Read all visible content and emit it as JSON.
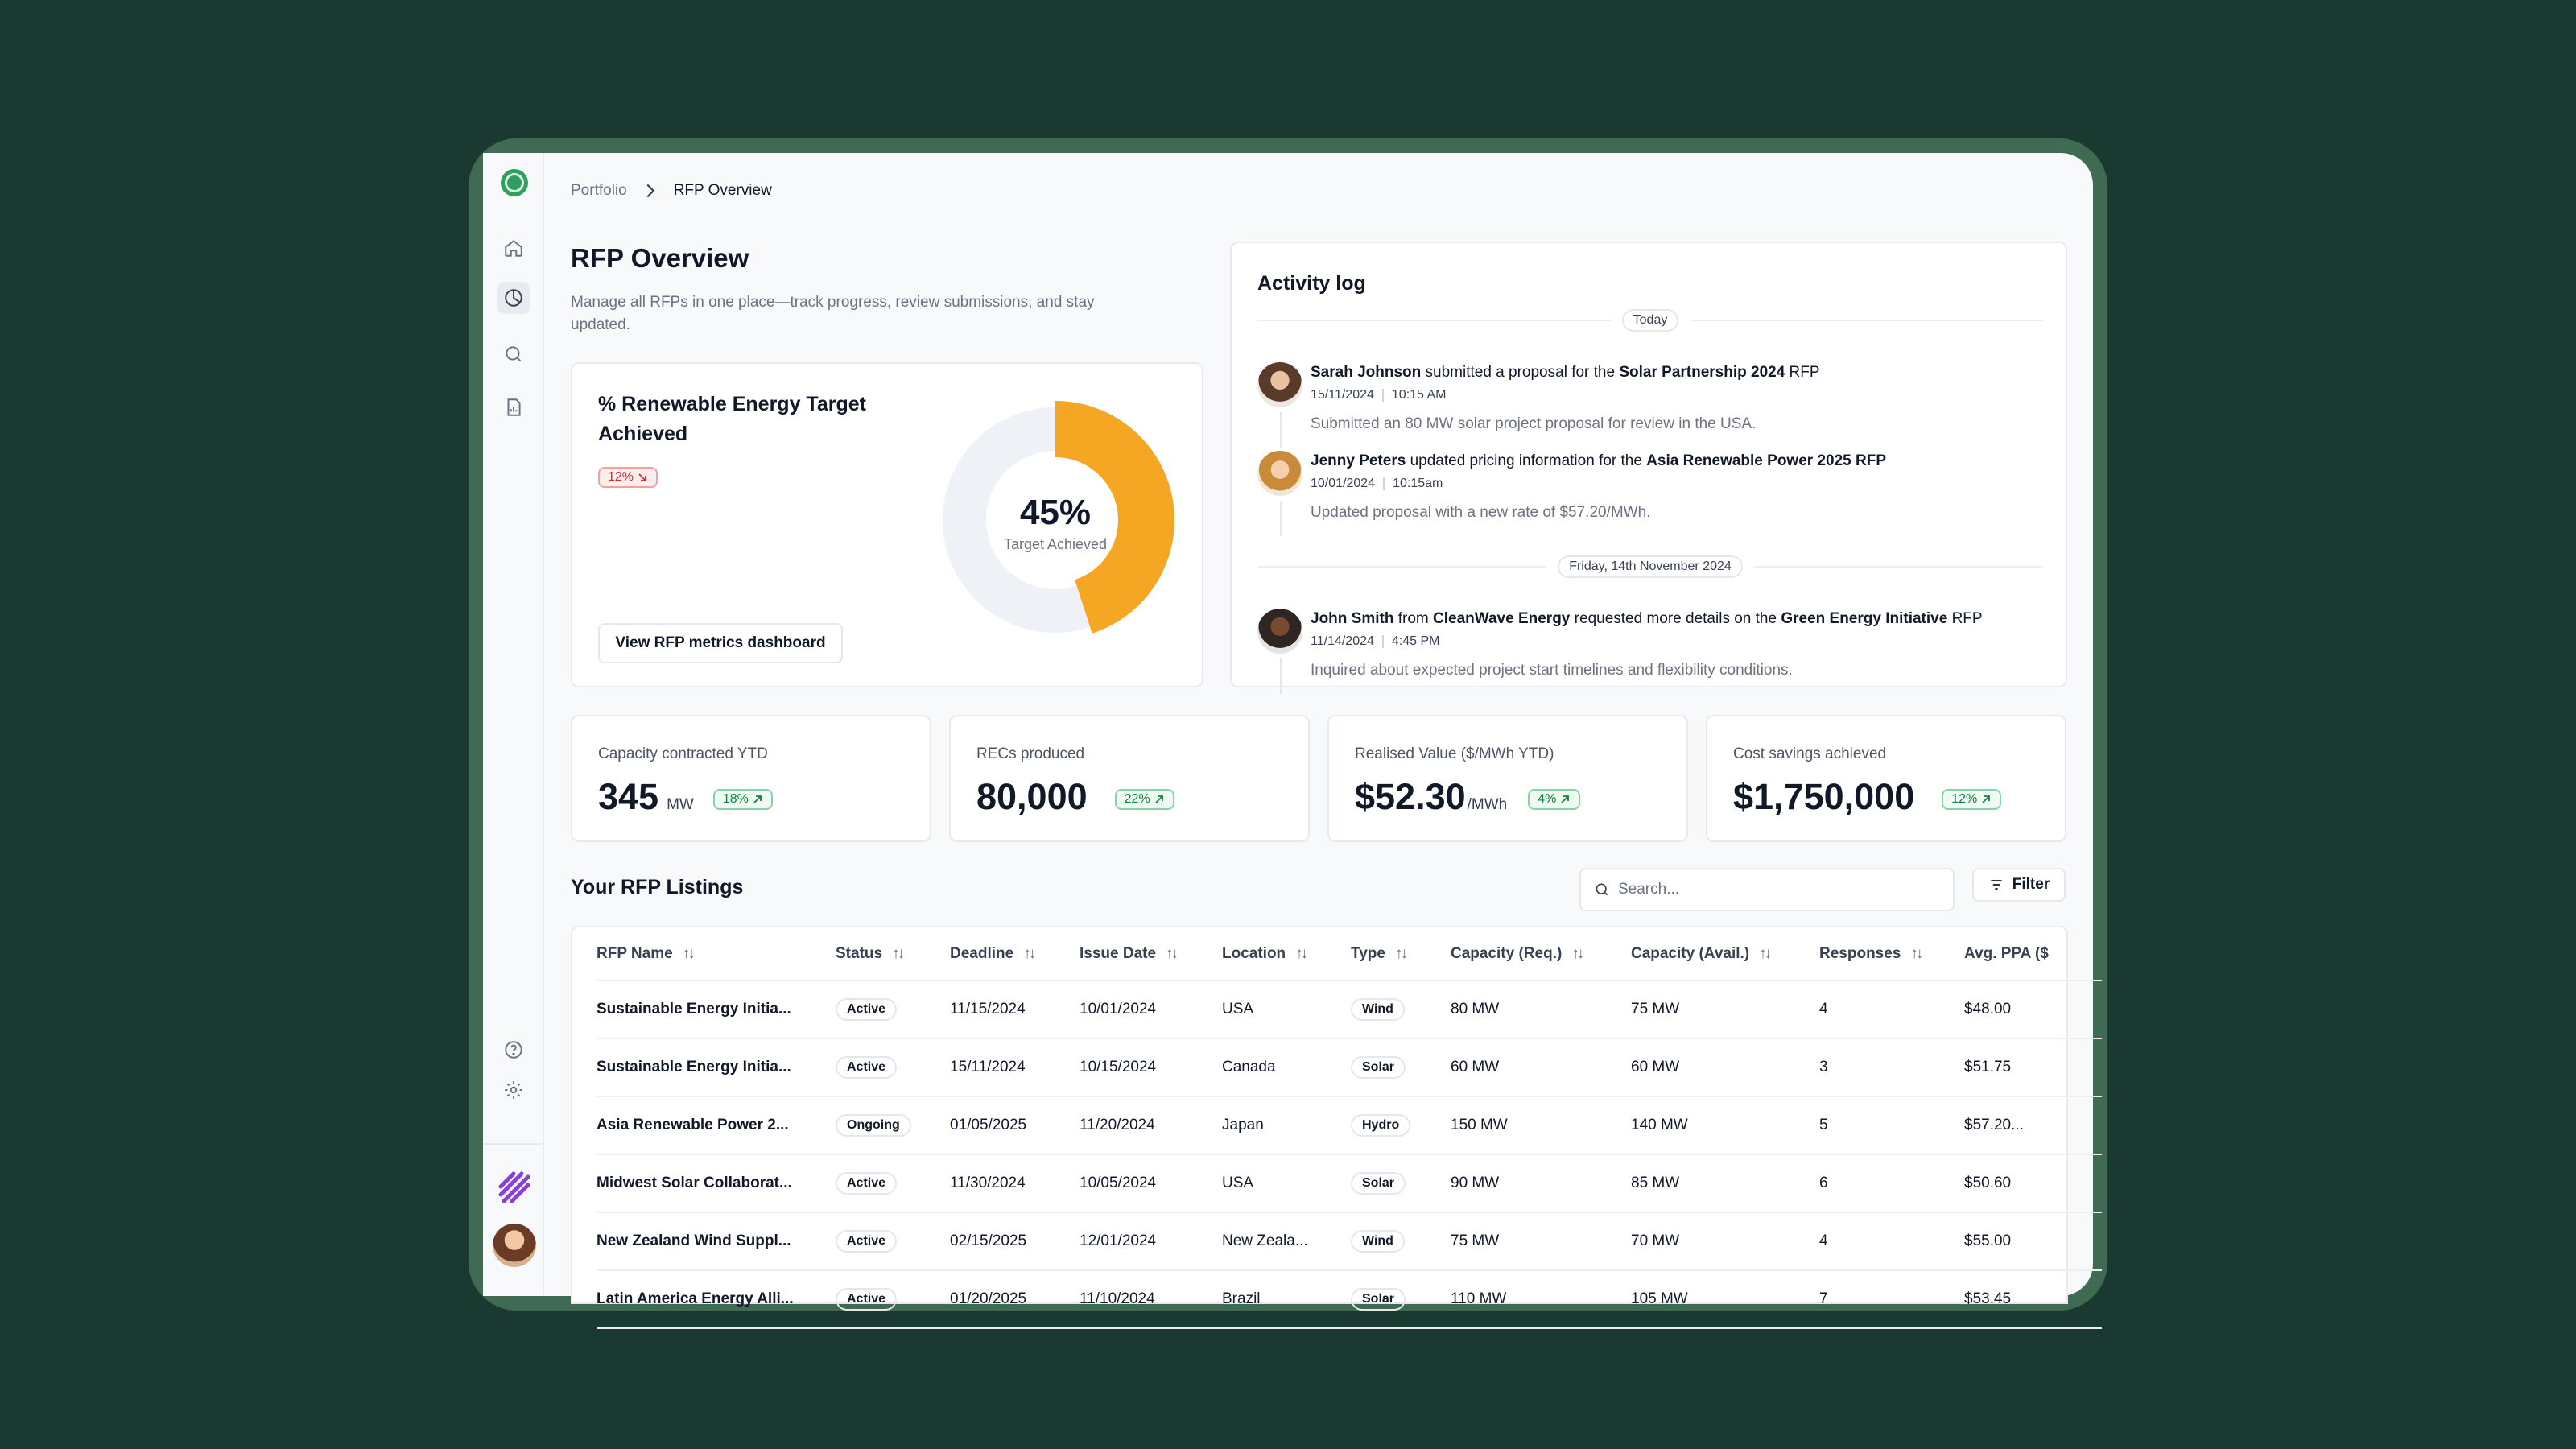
{
  "breadcrumb": {
    "parent": "Portfolio",
    "current": "RFP Overview"
  },
  "page": {
    "title": "RFP Overview",
    "subtitle": "Manage all RFPs in one place—track progress, review submissions, and stay updated."
  },
  "target_card": {
    "title": "% Renewable Energy Target Achieved",
    "change": "12%",
    "percent_label": "45%",
    "percent_value": 45,
    "caption": "Target Achieved",
    "button": "View RFP metrics dashboard",
    "colors": {
      "progress": "#f5a623",
      "track": "#eef1f5"
    }
  },
  "activity": {
    "title": "Activity log",
    "groups": [
      {
        "label": "Today",
        "items": [
          {
            "actor": "Sarah Johnson",
            "mid1": " submitted a proposal for the ",
            "org": "",
            "mid2": "",
            "target": "Solar Partnership 2024",
            "tail": " RFP",
            "date": "15/11/2024",
            "time": "10:15 AM",
            "desc": "Submitted an 80 MW solar project proposal for review in the USA."
          },
          {
            "actor": "Jenny Peters",
            "mid1": " updated pricing information for the ",
            "org": "",
            "mid2": "",
            "target": "Asia Renewable Power 2025 RFP",
            "tail": "",
            "date": "10/01/2024",
            "time": "10:15am",
            "desc": "Updated proposal with a new rate of $57.20/MWh."
          }
        ]
      },
      {
        "label": "Friday, 14th November 2024",
        "items": [
          {
            "actor": "John Smith",
            "mid1": " from ",
            "org": "CleanWave Energy",
            "mid2": " requested more details on the ",
            "target": "Green Energy Initiative",
            "tail": " RFP",
            "date": "11/14/2024",
            "time": "4:45 PM",
            "desc": "Inquired about expected project start timelines and flexibility conditions."
          }
        ]
      }
    ]
  },
  "stats": [
    {
      "label": "Capacity contracted YTD",
      "value": "345",
      "unit": "MW",
      "change": "18%"
    },
    {
      "label": "RECs produced",
      "value": "80,000",
      "unit": "",
      "change": "22%"
    },
    {
      "label": "Realised Value ($/MWh YTD)",
      "value": "$52.30",
      "unit": "/MWh",
      "change": "4%"
    },
    {
      "label": "Cost savings achieved",
      "value": "$1,750,000",
      "unit": "",
      "change": "12%"
    }
  ],
  "listings": {
    "title": "Your RFP Listings",
    "search_placeholder": "Search...",
    "filter_label": "Filter",
    "columns": [
      "RFP Name",
      "Status",
      "Deadline",
      "Issue Date",
      "Location",
      "Type",
      "Capacity (Req.)",
      "Capacity (Avail.)",
      "Responses",
      "Avg. PPA ($"
    ],
    "rows": [
      [
        "Sustainable Energy Initia...",
        "Active",
        "11/15/2024",
        "10/01/2024",
        "USA",
        "Wind",
        "80 MW",
        "75 MW",
        "4",
        "$48.00"
      ],
      [
        "Sustainable Energy Initia...",
        "Active",
        "15/11/2024",
        "10/15/2024",
        "Canada",
        "Solar",
        "60 MW",
        "60 MW",
        "3",
        "$51.75"
      ],
      [
        "Asia Renewable Power 2...",
        "Ongoing",
        "01/05/2025",
        "11/20/2024",
        "Japan",
        "Hydro",
        "150 MW",
        "140 MW",
        "5",
        "$57.20..."
      ],
      [
        "Midwest Solar Collaborat...",
        "Active",
        "11/30/2024",
        "10/05/2024",
        "USA",
        "Solar",
        "90 MW",
        "85 MW",
        "6",
        "$50.60"
      ],
      [
        "New Zealand Wind Suppl...",
        "Active",
        "02/15/2025",
        "12/01/2024",
        "New Zeala...",
        "Wind",
        "75 MW",
        "70 MW",
        "4",
        "$55.00"
      ],
      [
        "Latin America Energy Alli...",
        "Active",
        "01/20/2025",
        "11/10/2024",
        "Brazil",
        "Solar",
        "110 MW",
        "105 MW",
        "7",
        "$53.45"
      ]
    ]
  },
  "icons": [
    "leaf-logo-icon",
    "home-icon",
    "pie-chart-icon",
    "search-icon",
    "document-icon",
    "help-icon",
    "gear-icon"
  ]
}
